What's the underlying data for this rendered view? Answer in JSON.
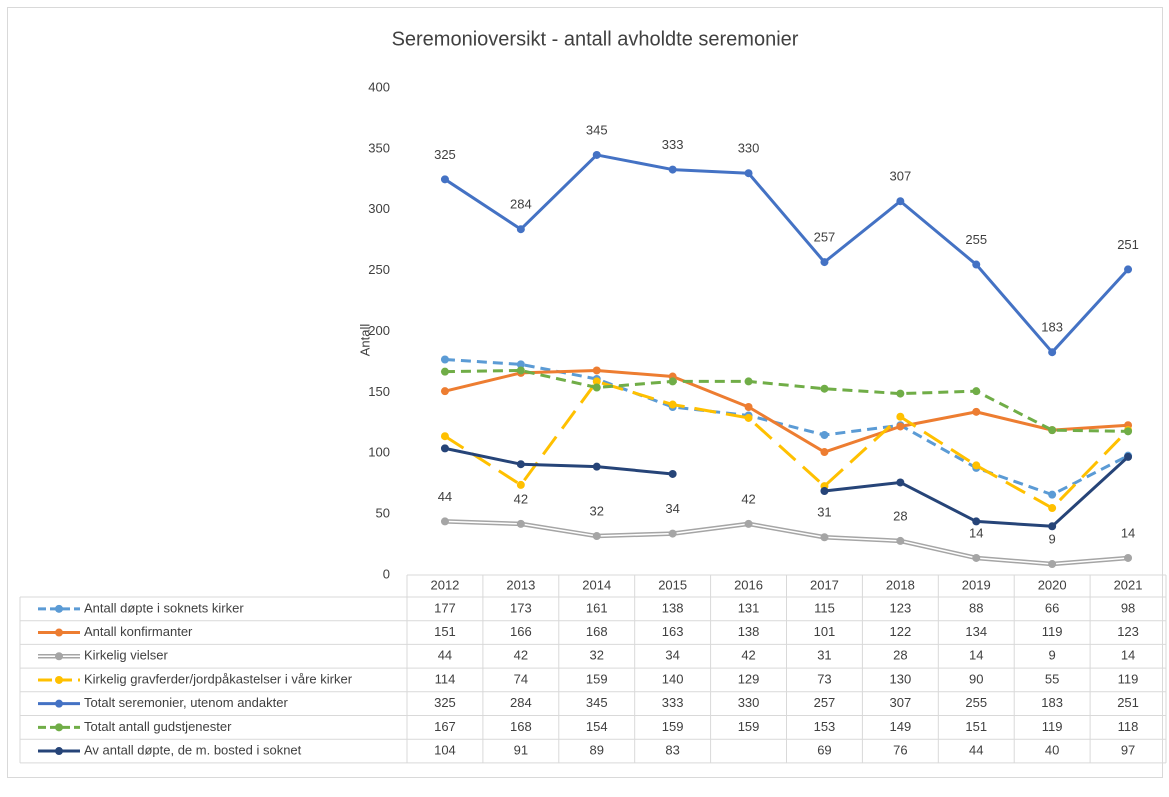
{
  "chart_data": {
    "type": "line",
    "title": "Seremonioversikt - antall avholdte seremonier",
    "y_label": "Antall",
    "categories": [
      "2012",
      "2013",
      "2014",
      "2015",
      "2016",
      "2017",
      "2018",
      "2019",
      "2020",
      "2021"
    ],
    "ylim": [
      0,
      400
    ],
    "yticks": [
      0,
      50,
      100,
      150,
      200,
      250,
      300,
      350,
      400
    ],
    "grid": false,
    "legend": "table",
    "series": [
      {
        "name": "Antall døpte i soknets kirker",
        "color": "#5b9bd5",
        "dash": "dashed",
        "values": [
          177,
          173,
          161,
          138,
          131,
          115,
          123,
          88,
          66,
          98
        ]
      },
      {
        "name": "Antall konfirmanter",
        "color": "#ed7d31",
        "dash": "solid",
        "values": [
          151,
          166,
          168,
          163,
          138,
          101,
          122,
          134,
          119,
          123
        ]
      },
      {
        "name": "Kirkelig vielser",
        "color": "#a5a5a5",
        "dash": "double",
        "data_labels": true,
        "values": [
          44,
          42,
          32,
          34,
          42,
          31,
          28,
          14,
          9,
          14
        ]
      },
      {
        "name": "Kirkelig gravferder/jordpåkastelser i våre kirker",
        "color": "#ffc000",
        "dash": "longdash",
        "values": [
          114,
          74,
          159,
          140,
          129,
          73,
          130,
          90,
          55,
          119
        ]
      },
      {
        "name": "Totalt seremonier, utenom andakter",
        "color": "#4472c4",
        "dash": "solid",
        "data_labels": true,
        "values": [
          325,
          284,
          345,
          333,
          330,
          257,
          307,
          255,
          183,
          251
        ]
      },
      {
        "name": "Totalt antall gudstjenester",
        "color": "#70ad47",
        "dash": "dashed",
        "values": [
          167,
          168,
          154,
          159,
          159,
          153,
          149,
          151,
          119,
          118
        ]
      },
      {
        "name": "Av antall døpte, de m. bosted i soknet",
        "color": "#264478",
        "dash": "solid",
        "values": [
          104,
          91,
          89,
          83,
          null,
          69,
          76,
          44,
          40,
          97
        ]
      }
    ]
  }
}
